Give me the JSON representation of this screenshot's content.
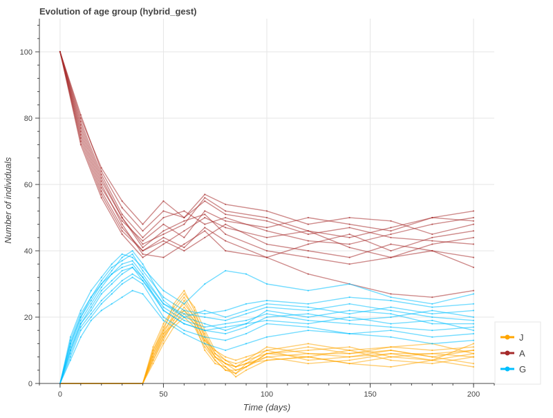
{
  "chart_data": {
    "type": "line",
    "title": "Evolution of age group (hybrid_gest)",
    "xlabel": "Time (days)",
    "ylabel": "Number of individuals",
    "xlim": [
      -10,
      210
    ],
    "ylim": [
      0,
      110
    ],
    "x_ticks": [
      0,
      50,
      100,
      150,
      200
    ],
    "y_ticks": [
      0,
      20,
      40,
      60,
      80,
      100
    ],
    "grid": true,
    "legend_position": "bottom-right",
    "legend": [
      {
        "label": "J",
        "color": "#FFA500"
      },
      {
        "label": "A",
        "color": "#A52A2A"
      },
      {
        "label": "G",
        "color": "#00BFFF"
      }
    ],
    "series": [
      {
        "name": "J",
        "group": "J",
        "color": "#FFA500",
        "x": [
          0,
          40,
          45,
          50,
          55,
          60,
          65,
          70,
          75,
          80,
          85,
          90,
          100,
          120,
          140,
          160,
          180,
          200
        ],
        "y": [
          0,
          0,
          10,
          16,
          24,
          28,
          22,
          14,
          8,
          5,
          3,
          6,
          8,
          9,
          8,
          9,
          7,
          9
        ]
      },
      {
        "name": "J",
        "group": "J",
        "color": "#FFA500",
        "x": [
          0,
          40,
          45,
          50,
          55,
          60,
          65,
          70,
          75,
          80,
          85,
          90,
          100,
          120,
          140,
          160,
          180,
          200
        ],
        "y": [
          0,
          0,
          8,
          14,
          20,
          25,
          20,
          12,
          7,
          4,
          4,
          5,
          9,
          8,
          6,
          8,
          9,
          10
        ]
      },
      {
        "name": "J",
        "group": "J",
        "color": "#FFA500",
        "x": [
          0,
          40,
          45,
          50,
          55,
          60,
          65,
          70,
          75,
          80,
          85,
          90,
          100,
          120,
          140,
          160,
          180,
          200
        ],
        "y": [
          0,
          0,
          9,
          15,
          18,
          22,
          18,
          10,
          6,
          5,
          2,
          4,
          7,
          8,
          10,
          7,
          6,
          8
        ]
      },
      {
        "name": "J",
        "group": "J",
        "color": "#FFA500",
        "x": [
          0,
          40,
          45,
          50,
          55,
          60,
          65,
          70,
          75,
          80,
          85,
          90,
          100,
          120,
          140,
          160,
          180,
          200
        ],
        "y": [
          0,
          0,
          7,
          13,
          19,
          23,
          19,
          13,
          8,
          6,
          5,
          6,
          10,
          7,
          8,
          10,
          8,
          6
        ]
      },
      {
        "name": "J",
        "group": "J",
        "color": "#FFA500",
        "x": [
          0,
          40,
          45,
          50,
          55,
          60,
          65,
          70,
          75,
          80,
          85,
          90,
          100,
          120,
          140,
          160,
          180,
          200
        ],
        "y": [
          0,
          0,
          10,
          17,
          22,
          26,
          21,
          15,
          9,
          7,
          6,
          7,
          11,
          9,
          9,
          11,
          10,
          11
        ]
      },
      {
        "name": "J",
        "group": "J",
        "color": "#FFA500",
        "x": [
          0,
          40,
          45,
          50,
          55,
          60,
          65,
          70,
          75,
          80,
          85,
          90,
          100,
          120,
          140,
          160,
          180,
          200
        ],
        "y": [
          0,
          0,
          6,
          12,
          17,
          20,
          17,
          11,
          7,
          4,
          3,
          5,
          8,
          6,
          7,
          9,
          9,
          8
        ]
      },
      {
        "name": "J",
        "group": "J",
        "color": "#FFA500",
        "x": [
          0,
          40,
          45,
          50,
          55,
          60,
          65,
          70,
          75,
          80,
          85,
          90,
          100,
          120,
          140,
          160,
          180,
          200
        ],
        "y": [
          0,
          0,
          8,
          15,
          21,
          24,
          20,
          14,
          9,
          6,
          4,
          5,
          9,
          10,
          11,
          8,
          7,
          12
        ]
      },
      {
        "name": "J",
        "group": "J",
        "color": "#FFA500",
        "x": [
          0,
          40,
          45,
          50,
          55,
          60,
          65,
          70,
          75,
          80,
          85,
          90,
          100,
          120,
          140,
          160,
          180,
          200
        ],
        "y": [
          0,
          0,
          9,
          16,
          20,
          22,
          19,
          13,
          10,
          8,
          7,
          8,
          10,
          12,
          10,
          11,
          12,
          9
        ]
      },
      {
        "name": "J",
        "group": "J",
        "color": "#FFA500",
        "x": [
          0,
          40,
          45,
          50,
          55,
          60,
          65,
          70,
          75,
          80,
          85,
          90,
          100,
          120,
          140,
          160,
          180,
          200
        ],
        "y": [
          0,
          0,
          7,
          14,
          18,
          21,
          18,
          12,
          8,
          6,
          5,
          6,
          7,
          8,
          6,
          5,
          7,
          5
        ]
      },
      {
        "name": "J",
        "group": "J",
        "color": "#FFA500",
        "x": [
          0,
          40,
          45,
          50,
          55,
          60,
          65,
          70,
          75,
          80,
          85,
          90,
          100,
          120,
          140,
          160,
          180,
          200
        ],
        "y": [
          0,
          0,
          11,
          18,
          23,
          27,
          23,
          16,
          10,
          7,
          5,
          7,
          9,
          11,
          9,
          10,
          8,
          10
        ]
      },
      {
        "name": "A",
        "group": "A",
        "color": "#A52A2A",
        "x": [
          0,
          10,
          20,
          30,
          40,
          50,
          60,
          70,
          80,
          100,
          120,
          140,
          160,
          180,
          200
        ],
        "y": [
          100,
          78,
          62,
          50,
          42,
          45,
          48,
          56,
          52,
          50,
          46,
          44,
          47,
          50,
          52
        ]
      },
      {
        "name": "A",
        "group": "A",
        "color": "#A52A2A",
        "x": [
          0,
          10,
          20,
          30,
          40,
          50,
          60,
          70,
          80,
          100,
          120,
          140,
          160,
          180,
          200
        ],
        "y": [
          100,
          74,
          58,
          47,
          40,
          43,
          40,
          44,
          48,
          42,
          40,
          38,
          42,
          40,
          35
        ]
      },
      {
        "name": "A",
        "group": "A",
        "color": "#A52A2A",
        "x": [
          0,
          10,
          20,
          30,
          40,
          50,
          60,
          70,
          80,
          100,
          120,
          140,
          160,
          180,
          200
        ],
        "y": [
          100,
          80,
          65,
          55,
          48,
          55,
          50,
          57,
          54,
          52,
          48,
          50,
          49,
          45,
          48
        ]
      },
      {
        "name": "A",
        "group": "A",
        "color": "#A52A2A",
        "x": [
          0,
          10,
          20,
          30,
          40,
          50,
          60,
          70,
          80,
          100,
          120,
          140,
          160,
          180,
          200
        ],
        "y": [
          100,
          76,
          60,
          48,
          39,
          38,
          42,
          46,
          40,
          38,
          42,
          45,
          40,
          44,
          46
        ]
      },
      {
        "name": "A",
        "group": "A",
        "color": "#A52A2A",
        "x": [
          0,
          10,
          20,
          30,
          40,
          50,
          60,
          70,
          80,
          100,
          120,
          140,
          160,
          180,
          200
        ],
        "y": [
          100,
          72,
          56,
          45,
          38,
          42,
          46,
          50,
          47,
          44,
          46,
          41,
          38,
          42,
          44
        ]
      },
      {
        "name": "A",
        "group": "A",
        "color": "#A52A2A",
        "x": [
          0,
          10,
          20,
          30,
          40,
          50,
          60,
          70,
          80,
          100,
          120,
          140,
          160,
          180,
          200
        ],
        "y": [
          100,
          79,
          63,
          51,
          44,
          50,
          52,
          48,
          50,
          46,
          43,
          42,
          45,
          48,
          50
        ]
      },
      {
        "name": "A",
        "group": "A",
        "color": "#A52A2A",
        "x": [
          0,
          10,
          20,
          30,
          40,
          50,
          60,
          70,
          80,
          100,
          120,
          140,
          160,
          180,
          200
        ],
        "y": [
          100,
          75,
          59,
          49,
          43,
          48,
          44,
          52,
          49,
          47,
          50,
          48,
          46,
          50,
          49
        ]
      },
      {
        "name": "A",
        "group": "A",
        "color": "#A52A2A",
        "x": [
          0,
          10,
          20,
          30,
          40,
          50,
          60,
          70,
          80,
          100,
          120,
          140,
          160,
          180,
          200
        ],
        "y": [
          100,
          77,
          61,
          50,
          41,
          46,
          49,
          51,
          45,
          40,
          38,
          36,
          38,
          40,
          38
        ]
      },
      {
        "name": "A",
        "group": "A",
        "color": "#A52A2A",
        "x": [
          0,
          10,
          20,
          30,
          40,
          50,
          60,
          70,
          80,
          100,
          120,
          140,
          160,
          180,
          200
        ],
        "y": [
          100,
          73,
          57,
          46,
          40,
          44,
          41,
          47,
          43,
          38,
          33,
          30,
          27,
          26,
          28
        ]
      },
      {
        "name": "A",
        "group": "A",
        "color": "#A52A2A",
        "x": [
          0,
          10,
          20,
          30,
          40,
          50,
          60,
          70,
          80,
          100,
          120,
          140,
          160,
          180,
          200
        ],
        "y": [
          100,
          81,
          64,
          53,
          46,
          52,
          50,
          55,
          51,
          49,
          45,
          47,
          44,
          43,
          42
        ]
      },
      {
        "name": "G",
        "group": "G",
        "color": "#00BFFF",
        "x": [
          0,
          5,
          10,
          15,
          20,
          25,
          30,
          35,
          40,
          50,
          60,
          70,
          80,
          90,
          100,
          120,
          140,
          160,
          180,
          200
        ],
        "y": [
          0,
          12,
          20,
          25,
          30,
          34,
          38,
          40,
          36,
          25,
          20,
          18,
          16,
          18,
          22,
          20,
          22,
          21,
          18,
          18
        ]
      },
      {
        "name": "G",
        "group": "G",
        "color": "#00BFFF",
        "x": [
          0,
          5,
          10,
          15,
          20,
          25,
          30,
          35,
          40,
          50,
          60,
          70,
          80,
          90,
          100,
          120,
          140,
          160,
          180,
          200
        ],
        "y": [
          0,
          10,
          18,
          22,
          27,
          30,
          33,
          35,
          32,
          22,
          18,
          16,
          15,
          17,
          20,
          21,
          19,
          20,
          22,
          20
        ]
      },
      {
        "name": "G",
        "group": "G",
        "color": "#00BFFF",
        "x": [
          0,
          5,
          10,
          15,
          20,
          25,
          30,
          35,
          40,
          50,
          60,
          70,
          80,
          90,
          100,
          120,
          140,
          160,
          180,
          200
        ],
        "y": [
          0,
          14,
          22,
          28,
          32,
          36,
          39,
          38,
          35,
          28,
          24,
          30,
          34,
          33,
          30,
          28,
          30,
          26,
          24,
          27
        ]
      },
      {
        "name": "G",
        "group": "G",
        "color": "#00BFFF",
        "x": [
          0,
          5,
          10,
          15,
          20,
          25,
          30,
          35,
          40,
          50,
          60,
          70,
          80,
          90,
          100,
          120,
          140,
          160,
          180,
          200
        ],
        "y": [
          0,
          8,
          16,
          20,
          24,
          27,
          30,
          32,
          30,
          20,
          16,
          14,
          13,
          15,
          18,
          17,
          15,
          16,
          14,
          15
        ]
      },
      {
        "name": "G",
        "group": "G",
        "color": "#00BFFF",
        "x": [
          0,
          5,
          10,
          15,
          20,
          25,
          30,
          35,
          40,
          50,
          60,
          70,
          80,
          90,
          100,
          120,
          140,
          160,
          180,
          200
        ],
        "y": [
          0,
          11,
          19,
          24,
          29,
          33,
          36,
          37,
          33,
          24,
          21,
          20,
          19,
          21,
          23,
          22,
          24,
          22,
          20,
          19
        ]
      },
      {
        "name": "G",
        "group": "G",
        "color": "#00BFFF",
        "x": [
          0,
          5,
          10,
          15,
          20,
          25,
          30,
          35,
          40,
          50,
          60,
          70,
          80,
          90,
          100,
          120,
          140,
          160,
          180,
          200
        ],
        "y": [
          0,
          9,
          17,
          21,
          25,
          28,
          31,
          33,
          31,
          23,
          19,
          17,
          18,
          19,
          21,
          19,
          18,
          17,
          16,
          17
        ]
      },
      {
        "name": "G",
        "group": "G",
        "color": "#00BFFF",
        "x": [
          0,
          5,
          10,
          15,
          20,
          25,
          30,
          35,
          40,
          50,
          60,
          70,
          80,
          90,
          100,
          120,
          140,
          160,
          180,
          200
        ],
        "y": [
          0,
          13,
          21,
          26,
          31,
          35,
          37,
          39,
          34,
          26,
          22,
          21,
          22,
          24,
          25,
          24,
          26,
          25,
          23,
          24
        ]
      },
      {
        "name": "G",
        "group": "G",
        "color": "#00BFFF",
        "x": [
          0,
          5,
          10,
          15,
          20,
          25,
          30,
          35,
          40,
          50,
          60,
          70,
          80,
          90,
          100,
          120,
          140,
          160,
          180,
          200
        ],
        "y": [
          0,
          7,
          14,
          19,
          22,
          24,
          26,
          28,
          27,
          19,
          15,
          12,
          10,
          12,
          14,
          16,
          15,
          14,
          12,
          13
        ]
      },
      {
        "name": "G",
        "group": "G",
        "color": "#00BFFF",
        "x": [
          0,
          5,
          10,
          15,
          20,
          25,
          30,
          35,
          40,
          50,
          60,
          70,
          80,
          90,
          100,
          120,
          140,
          160,
          180,
          200
        ],
        "y": [
          0,
          12,
          20,
          26,
          30,
          33,
          35,
          36,
          32,
          24,
          20,
          22,
          20,
          22,
          24,
          23,
          21,
          23,
          21,
          22
        ]
      },
      {
        "name": "G",
        "group": "G",
        "color": "#00BFFF",
        "x": [
          0,
          5,
          10,
          15,
          20,
          25,
          30,
          35,
          40,
          50,
          60,
          70,
          80,
          90,
          100,
          120,
          140,
          160,
          180,
          200
        ],
        "y": [
          0,
          10,
          18,
          23,
          28,
          31,
          34,
          35,
          31,
          22,
          18,
          16,
          17,
          18,
          19,
          18,
          20,
          18,
          19,
          16
        ]
      }
    ]
  }
}
